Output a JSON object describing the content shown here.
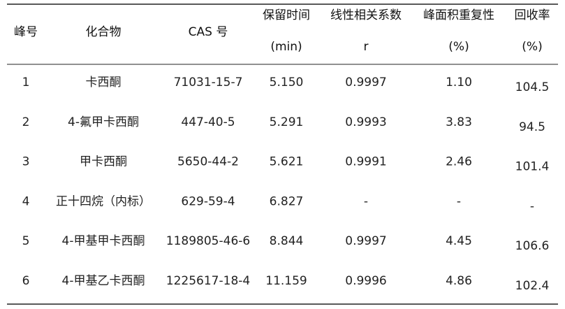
{
  "table": {
    "headers": [
      [
        "峰号"
      ],
      [
        "化合物"
      ],
      [
        "CAS 号"
      ],
      [
        "保留时间",
        "(min)"
      ],
      [
        "线性相关系数",
        "r"
      ],
      [
        "峰面积重复性",
        "(%)"
      ],
      [
        "回收率",
        "(%)"
      ]
    ],
    "rows": [
      [
        "1",
        "卡西酮",
        "71031-15-7",
        "5.150",
        "0.9997",
        "1.10",
        "104.5"
      ],
      [
        "2",
        "4-氟甲卡西酮",
        "447-40-5",
        "5.291",
        "0.9993",
        "3.83",
        "94.5"
      ],
      [
        "3",
        "甲卡西酮",
        "5650-44-2",
        "5.621",
        "0.9991",
        "2.46",
        "101.4"
      ],
      [
        "4",
        "正十四烷（内标）",
        "629-59-4",
        "6.827",
        "-",
        "-",
        "-"
      ],
      [
        "5",
        "4-甲基甲卡西酮",
        "1189805-46-6",
        "8.844",
        "0.9997",
        "4.45",
        "106.6"
      ],
      [
        "6",
        "4-甲基乙卡西酮",
        "1225617-18-4",
        "11.159",
        "0.9996",
        "4.86",
        "102.4"
      ]
    ]
  }
}
